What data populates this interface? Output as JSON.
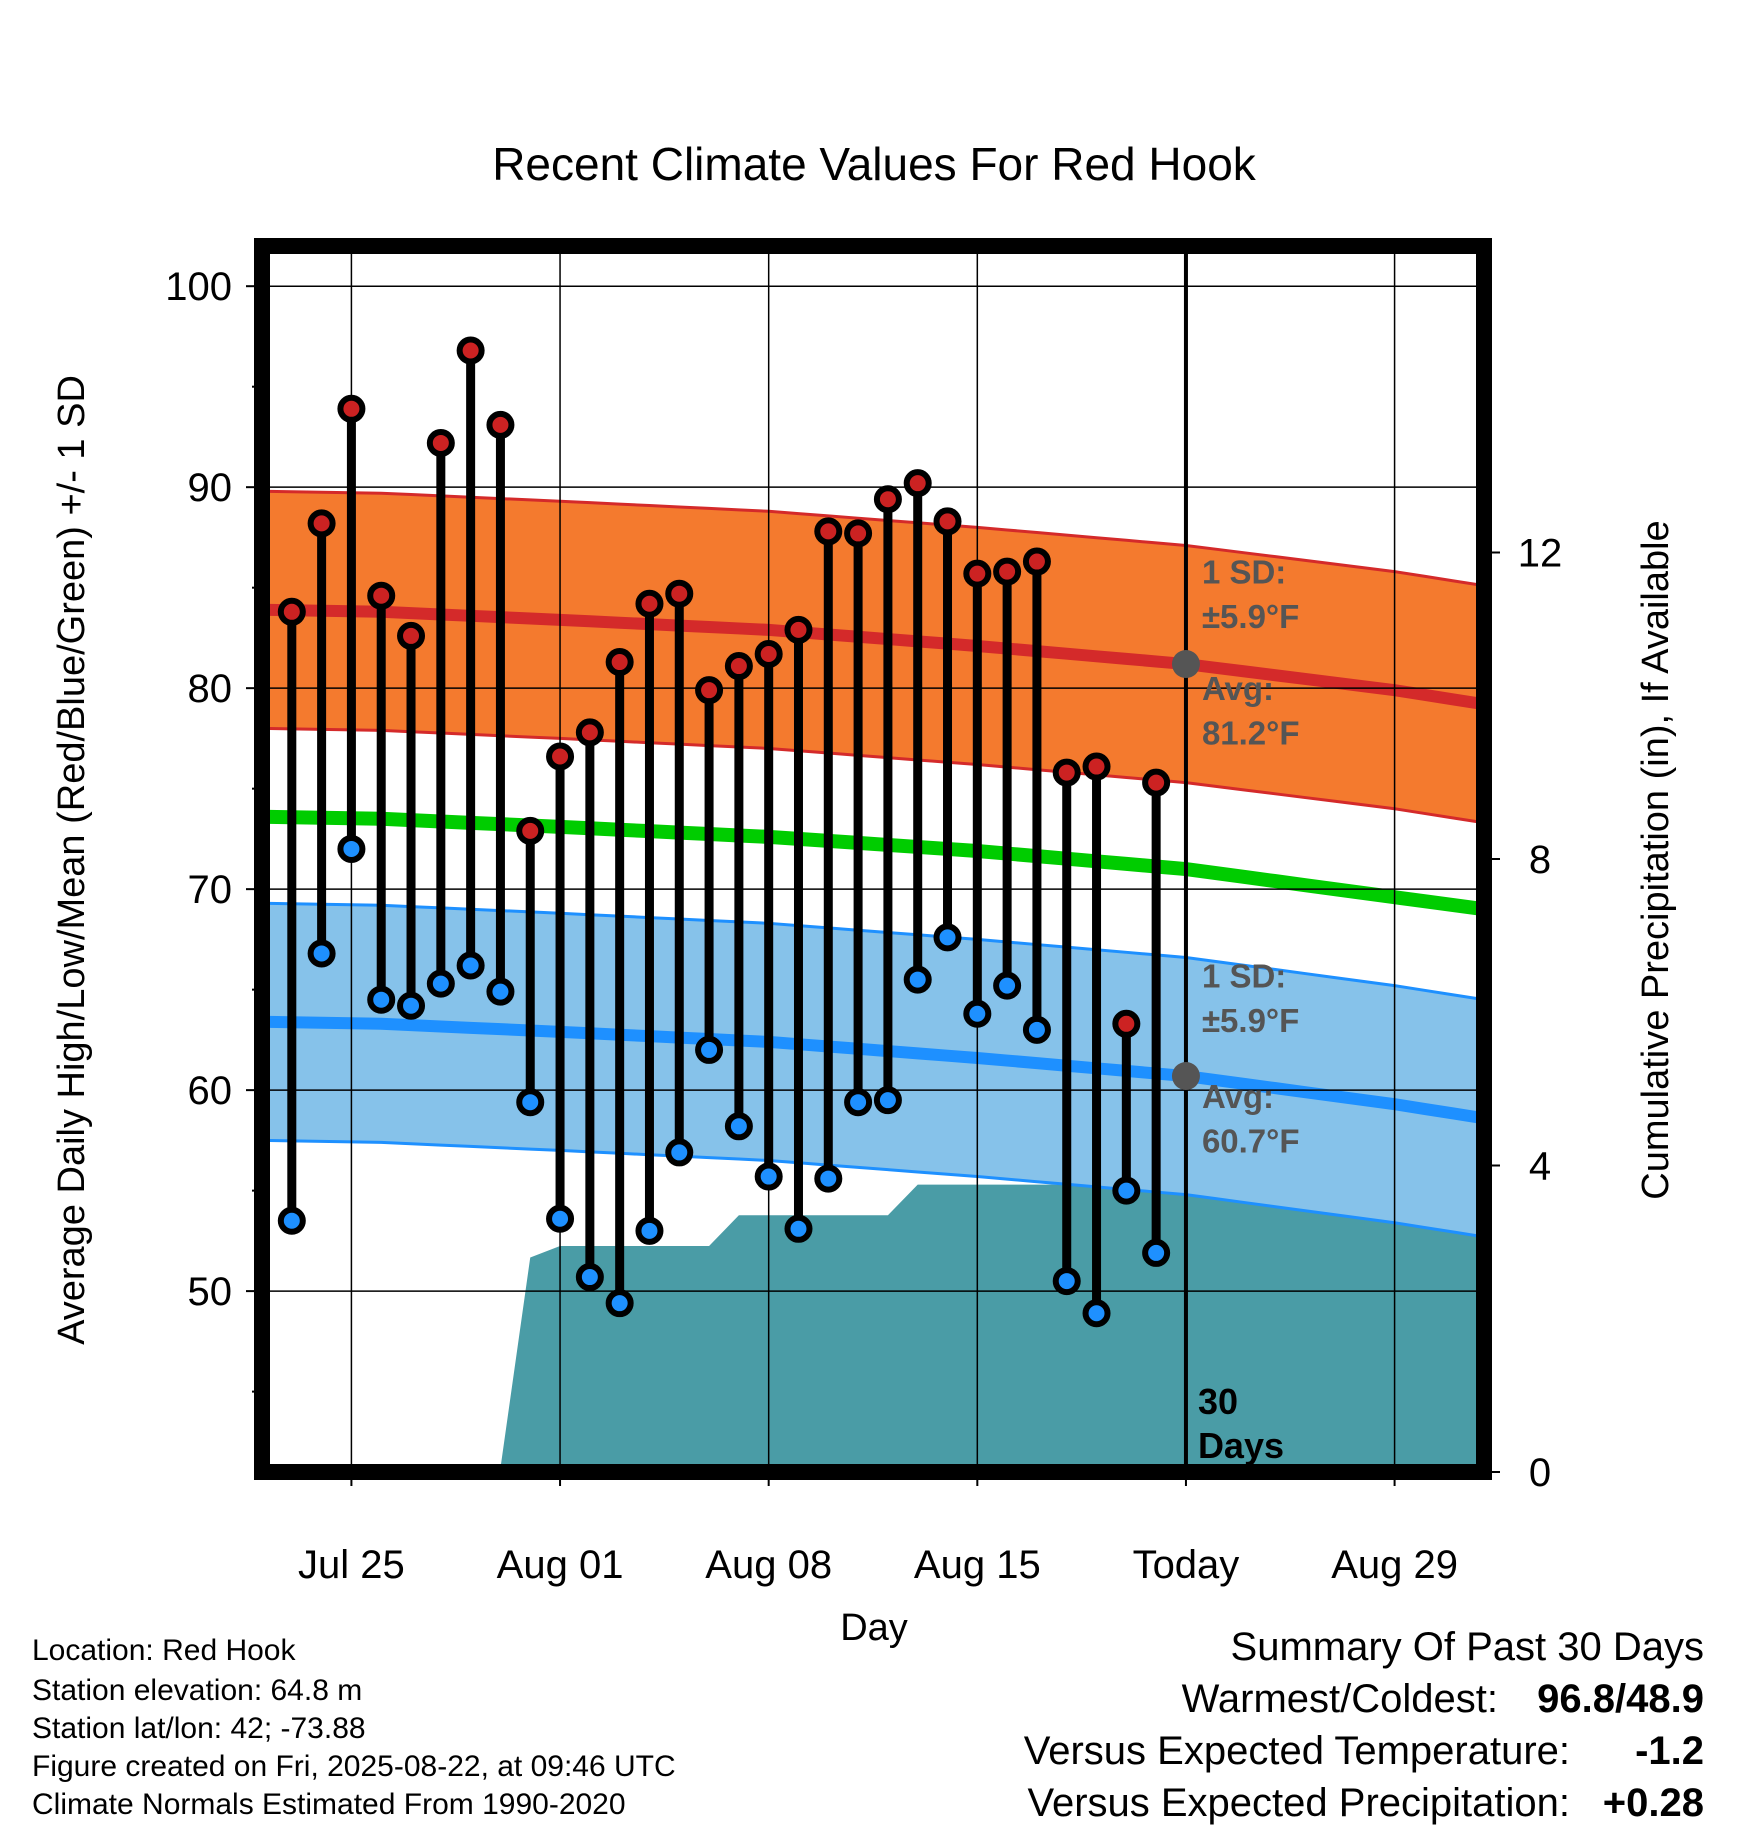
{
  "chart_data": {
    "type": "line",
    "title": "Recent Climate Values For Red Hook",
    "xlabel": "Day",
    "ylabel": "Average Daily High/Low/Mean (Red/Blue/Green) +/- 1 SD",
    "y2label": "Cumulative Precipitation (in), If Available",
    "ylim": [
      41,
      102
    ],
    "y2lim": [
      0,
      16
    ],
    "y_ticks": [
      50,
      60,
      70,
      80,
      90,
      100
    ],
    "y2_ticks": [
      0,
      4,
      8,
      12
    ],
    "x_range": [
      "2025-07-22",
      "2025-09-01"
    ],
    "x_ticks": [
      {
        "date": "2025-07-25",
        "label": "Jul 25"
      },
      {
        "date": "2025-08-01",
        "label": "Aug 01"
      },
      {
        "date": "2025-08-08",
        "label": "Aug 08"
      },
      {
        "date": "2025-08-15",
        "label": "Aug 15"
      },
      {
        "date": "2025-08-22",
        "label": "Today"
      },
      {
        "date": "2025-08-29",
        "label": "Aug 29"
      }
    ],
    "grid": true,
    "today": "2025-08-22",
    "daily": [
      {
        "date": "2025-07-23",
        "high": 83.8,
        "low": 53.5
      },
      {
        "date": "2025-07-24",
        "high": 88.2,
        "low": 66.8
      },
      {
        "date": "2025-07-25",
        "high": 93.9,
        "low": 72.0
      },
      {
        "date": "2025-07-26",
        "high": 84.6,
        "low": 64.5
      },
      {
        "date": "2025-07-27",
        "high": 82.6,
        "low": 64.2
      },
      {
        "date": "2025-07-28",
        "high": 92.2,
        "low": 65.3
      },
      {
        "date": "2025-07-29",
        "high": 96.8,
        "low": 66.2
      },
      {
        "date": "2025-07-30",
        "high": 93.1,
        "low": 64.9
      },
      {
        "date": "2025-07-31",
        "high": 72.9,
        "low": 59.4
      },
      {
        "date": "2025-08-01",
        "high": 76.6,
        "low": 53.6
      },
      {
        "date": "2025-08-02",
        "high": 77.8,
        "low": 50.7
      },
      {
        "date": "2025-08-03",
        "high": 81.3,
        "low": 49.4
      },
      {
        "date": "2025-08-04",
        "high": 84.2,
        "low": 53.0
      },
      {
        "date": "2025-08-05",
        "high": 84.7,
        "low": 56.9
      },
      {
        "date": "2025-08-06",
        "high": 79.9,
        "low": 62.0
      },
      {
        "date": "2025-08-07",
        "high": 81.1,
        "low": 58.2
      },
      {
        "date": "2025-08-08",
        "high": 81.7,
        "low": 55.7
      },
      {
        "date": "2025-08-09",
        "high": 82.9,
        "low": 53.1
      },
      {
        "date": "2025-08-10",
        "high": 87.8,
        "low": 55.6
      },
      {
        "date": "2025-08-11",
        "high": 87.7,
        "low": 59.4
      },
      {
        "date": "2025-08-12",
        "high": 89.4,
        "low": 59.5
      },
      {
        "date": "2025-08-13",
        "high": 90.2,
        "low": 65.5
      },
      {
        "date": "2025-08-14",
        "high": 88.3,
        "low": 67.6
      },
      {
        "date": "2025-08-15",
        "high": 85.7,
        "low": 63.8
      },
      {
        "date": "2025-08-16",
        "high": 85.8,
        "low": 65.2
      },
      {
        "date": "2025-08-17",
        "high": 86.3,
        "low": 63.0
      },
      {
        "date": "2025-08-18",
        "high": 75.8,
        "low": 50.5
      },
      {
        "date": "2025-08-19",
        "high": 76.1,
        "low": 48.9
      },
      {
        "date": "2025-08-20",
        "high": 63.3,
        "low": 55.0
      },
      {
        "date": "2025-08-21",
        "high": 75.3,
        "low": 51.9
      }
    ],
    "normal_high": [
      {
        "date": "2025-07-22",
        "value": 83.9
      },
      {
        "date": "2025-07-26",
        "value": 83.8
      },
      {
        "date": "2025-08-01",
        "value": 83.4
      },
      {
        "date": "2025-08-08",
        "value": 82.9
      },
      {
        "date": "2025-08-15",
        "value": 82.1
      },
      {
        "date": "2025-08-22",
        "value": 81.2
      },
      {
        "date": "2025-08-29",
        "value": 79.9
      },
      {
        "date": "2025-09-01",
        "value": 79.2
      }
    ],
    "normal_low": [
      {
        "date": "2025-07-22",
        "value": 63.4
      },
      {
        "date": "2025-07-26",
        "value": 63.3
      },
      {
        "date": "2025-08-01",
        "value": 62.9
      },
      {
        "date": "2025-08-08",
        "value": 62.4
      },
      {
        "date": "2025-08-15",
        "value": 61.6
      },
      {
        "date": "2025-08-22",
        "value": 60.7
      },
      {
        "date": "2025-08-29",
        "value": 59.3
      },
      {
        "date": "2025-09-01",
        "value": 58.6
      }
    ],
    "normal_mean": [
      {
        "date": "2025-07-22",
        "value": 73.6
      },
      {
        "date": "2025-07-26",
        "value": 73.5
      },
      {
        "date": "2025-08-01",
        "value": 73.1
      },
      {
        "date": "2025-08-08",
        "value": 72.6
      },
      {
        "date": "2025-08-15",
        "value": 71.9
      },
      {
        "date": "2025-08-22",
        "value": 71.0
      },
      {
        "date": "2025-08-29",
        "value": 69.6
      },
      {
        "date": "2025-09-01",
        "value": 69.0
      }
    ],
    "sd_high": 5.9,
    "sd_low": 5.9,
    "cumulative_precip": [
      {
        "date": "2025-07-22",
        "value": 0.0
      },
      {
        "date": "2025-07-27",
        "value": 0.0
      },
      {
        "date": "2025-07-27",
        "value": 0.05
      },
      {
        "date": "2025-07-30",
        "value": 0.05
      },
      {
        "date": "2025-07-31",
        "value": 2.8
      },
      {
        "date": "2025-08-01",
        "value": 2.95
      },
      {
        "date": "2025-08-06",
        "value": 2.95
      },
      {
        "date": "2025-08-07",
        "value": 3.35
      },
      {
        "date": "2025-08-12",
        "value": 3.35
      },
      {
        "date": "2025-08-13",
        "value": 3.75
      },
      {
        "date": "2025-08-19",
        "value": 3.75
      },
      {
        "date": "2025-08-20",
        "value": 4.4
      },
      {
        "date": "2025-09-01",
        "value": 4.4
      }
    ],
    "colors": {
      "high_marker": "#cc2222",
      "low_marker": "#1e90ff",
      "high_band": "#f47a2e",
      "high_line": "#d42a2a",
      "low_band": "#86c2ea",
      "low_line": "#1e90ff",
      "mean_line": "#00cc00",
      "precip": "#4a9ca6",
      "sd_text": "#555555",
      "today_dot": "#555555"
    },
    "annotations": {
      "high_sd_line1": "1 SD:",
      "high_sd_line2": "±5.9°F",
      "high_avg_line1": "Avg:",
      "high_avg_line2": "81.2°F",
      "low_sd_line1": "1 SD:",
      "low_sd_line2": "±5.9°F",
      "low_avg_line1": "Avg:",
      "low_avg_line2": "60.7°F",
      "days_line1": "30",
      "days_line2": "Days"
    }
  },
  "info": {
    "location": "Location: Red Hook",
    "elevation": "Station elevation: 64.8 m",
    "latlon": "Station lat/lon: 42; -73.88",
    "created": "Figure created on Fri, 2025-08-22, at 09:46 UTC",
    "normals": "Climate Normals Estimated From 1990-2020"
  },
  "summary": {
    "heading": "Summary Of Past 30 Days",
    "warmest_label": "Warmest/Coldest:",
    "warmest_value": "96.8/48.9",
    "temp_label": "Versus Expected Temperature:",
    "temp_value": "-1.2",
    "temp_color": "#1e90ff",
    "precip_label": "Versus Expected Precipitation:",
    "precip_value": "+0.28",
    "precip_color": "#22bb22"
  }
}
